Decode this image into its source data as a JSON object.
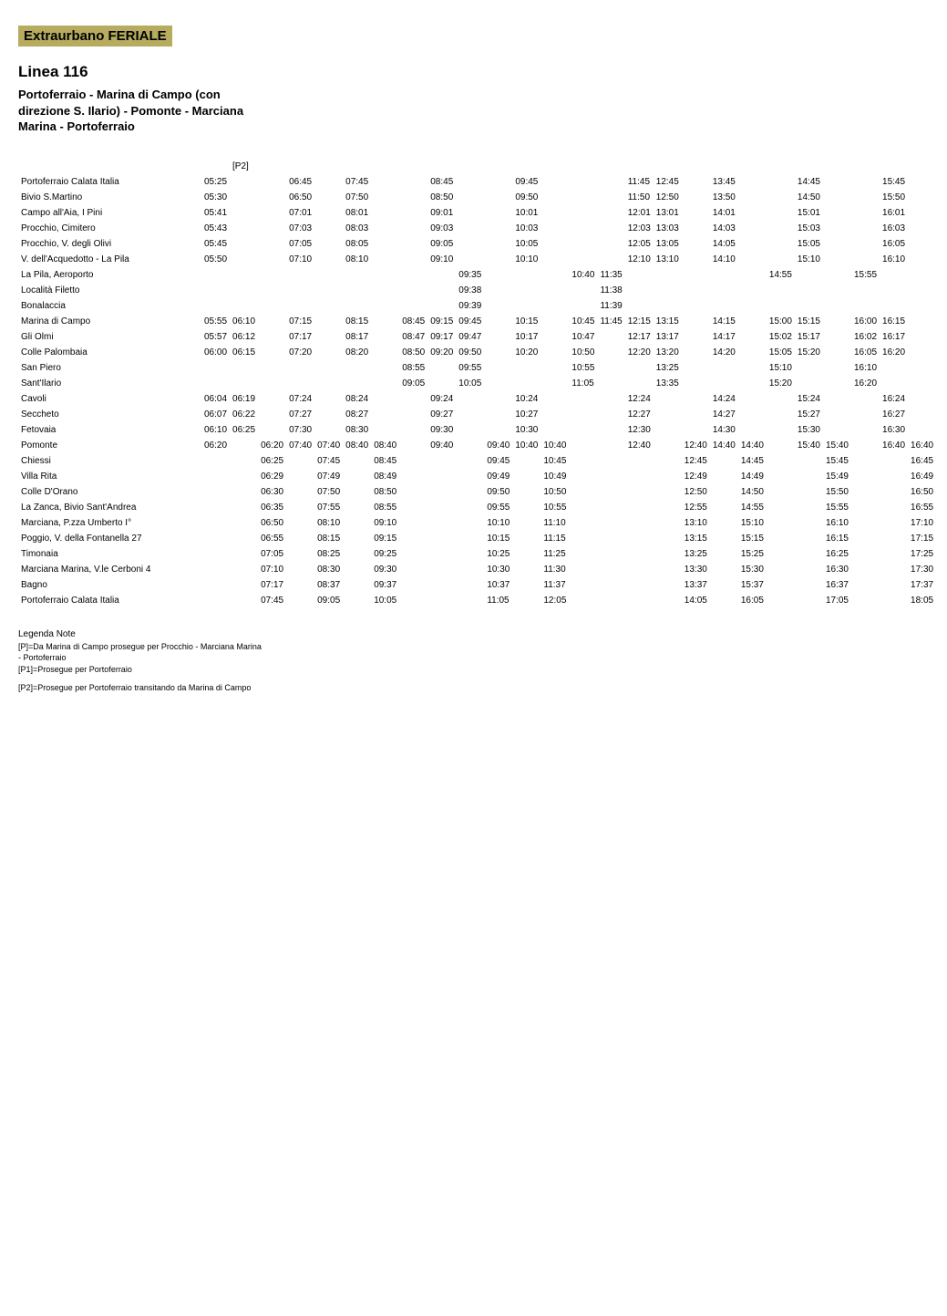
{
  "badge": "Extraurbano FERIALE",
  "linea": "Linea 116",
  "subtitle_lines": [
    "Portoferraio - Marina di  Campo (con",
    "direzione S. Ilario) - Pomonte - Marciana",
    "Marina - Portoferraio"
  ],
  "header_note_col": 2,
  "header_note": "[P2]",
  "num_time_cols": 28,
  "stops": [
    {
      "name": "Portoferraio Calata Italia",
      "times": {
        "1": "05:25",
        "4": "06:45",
        "6": "07:45",
        "9": "08:45",
        "12": "09:45",
        "16": "11:45",
        "17": "12:45",
        "19": "13:45",
        "22": "14:45",
        "25": "15:45"
      }
    },
    {
      "name": "Bivio S.Martino",
      "times": {
        "1": "05:30",
        "4": "06:50",
        "6": "07:50",
        "9": "08:50",
        "12": "09:50",
        "16": "11:50",
        "17": "12:50",
        "19": "13:50",
        "22": "14:50",
        "25": "15:50"
      }
    },
    {
      "name": "Campo all'Aia,  I Pini",
      "times": {
        "1": "05:41",
        "4": "07:01",
        "6": "08:01",
        "9": "09:01",
        "12": "10:01",
        "16": "12:01",
        "17": "13:01",
        "19": "14:01",
        "22": "15:01",
        "25": "16:01"
      }
    },
    {
      "name": "Procchio, Cimitero",
      "times": {
        "1": "05:43",
        "4": "07:03",
        "6": "08:03",
        "9": "09:03",
        "12": "10:03",
        "16": "12:03",
        "17": "13:03",
        "19": "14:03",
        "22": "15:03",
        "25": "16:03"
      }
    },
    {
      "name": "Procchio, V. degli Olivi",
      "times": {
        "1": "05:45",
        "4": "07:05",
        "6": "08:05",
        "9": "09:05",
        "12": "10:05",
        "16": "12:05",
        "17": "13:05",
        "19": "14:05",
        "22": "15:05",
        "25": "16:05"
      }
    },
    {
      "name": "V. dell'Acquedotto - La Pila",
      "times": {
        "1": "05:50",
        "4": "07:10",
        "6": "08:10",
        "9": "09:10",
        "12": "10:10",
        "16": "12:10",
        "17": "13:10",
        "19": "14:10",
        "22": "15:10",
        "25": "16:10"
      }
    },
    {
      "name": "La Pila, Aeroporto",
      "times": {
        "10": "09:35",
        "14": "10:40",
        "15": "11:35",
        "21": "14:55",
        "24": "15:55"
      }
    },
    {
      "name": "Località Filetto",
      "times": {
        "10": "09:38",
        "15": "11:38"
      }
    },
    {
      "name": "Bonalaccia",
      "times": {
        "10": "09:39",
        "15": "11:39"
      }
    },
    {
      "name": "Marina di Campo",
      "times": {
        "1": "05:55",
        "2": "06:10",
        "4": "07:15",
        "6": "08:15",
        "8": "08:45",
        "9": "09:15",
        "10": "09:45",
        "12": "10:15",
        "14": "10:45",
        "15": "11:45",
        "16": "12:15",
        "17": "13:15",
        "19": "14:15",
        "21": "15:00",
        "22": "15:15",
        "24": "16:00",
        "25": "16:15"
      }
    },
    {
      "name": "Gli Olmi",
      "times": {
        "1": "05:57",
        "2": "06:12",
        "4": "07:17",
        "6": "08:17",
        "8": "08:47",
        "9": "09:17",
        "10": "09:47",
        "12": "10:17",
        "14": "10:47",
        "16": "12:17",
        "17": "13:17",
        "19": "14:17",
        "21": "15:02",
        "22": "15:17",
        "24": "16:02",
        "25": "16:17"
      }
    },
    {
      "name": "Colle Palombaia",
      "times": {
        "1": "06:00",
        "2": "06:15",
        "4": "07:20",
        "6": "08:20",
        "8": "08:50",
        "9": "09:20",
        "10": "09:50",
        "12": "10:20",
        "14": "10:50",
        "16": "12:20",
        "17": "13:20",
        "19": "14:20",
        "21": "15:05",
        "22": "15:20",
        "24": "16:05",
        "25": "16:20"
      }
    },
    {
      "name": "San Piero",
      "times": {
        "8": "08:55",
        "10": "09:55",
        "14": "10:55",
        "17": "13:25",
        "21": "15:10",
        "24": "16:10"
      }
    },
    {
      "name": "Sant'Ilario",
      "times": {
        "8": "09:05",
        "10": "10:05",
        "14": "11:05",
        "17": "13:35",
        "21": "15:20",
        "24": "16:20"
      }
    },
    {
      "name": "Cavoli",
      "times": {
        "1": "06:04",
        "2": "06:19",
        "4": "07:24",
        "6": "08:24",
        "9": "09:24",
        "12": "10:24",
        "16": "12:24",
        "19": "14:24",
        "22": "15:24",
        "25": "16:24"
      }
    },
    {
      "name": "Seccheto",
      "times": {
        "1": "06:07",
        "2": "06:22",
        "4": "07:27",
        "6": "08:27",
        "9": "09:27",
        "12": "10:27",
        "16": "12:27",
        "19": "14:27",
        "22": "15:27",
        "25": "16:27"
      }
    },
    {
      "name": "Fetovaia",
      "times": {
        "1": "06:10",
        "2": "06:25",
        "4": "07:30",
        "6": "08:30",
        "9": "09:30",
        "12": "10:30",
        "16": "12:30",
        "19": "14:30",
        "22": "15:30",
        "25": "16:30"
      }
    },
    {
      "name": "Pomonte",
      "times": {
        "1": "06:20",
        "3": "06:20",
        "4": "07:40",
        "5": "07:40",
        "6": "08:40",
        "7": "08:40",
        "9": "09:40",
        "11": "09:40",
        "12": "10:40",
        "13": "10:40",
        "16": "12:40",
        "18": "12:40",
        "19": "14:40",
        "20": "14:40",
        "22": "15:40",
        "23": "15:40",
        "25": "16:40",
        "26": "16:40"
      }
    },
    {
      "name": "Chiessi",
      "times": {
        "3": "06:25",
        "5": "07:45",
        "7": "08:45",
        "11": "09:45",
        "13": "10:45",
        "18": "12:45",
        "20": "14:45",
        "23": "15:45",
        "26": "16:45"
      }
    },
    {
      "name": "Villa Rita",
      "times": {
        "3": "06:29",
        "5": "07:49",
        "7": "08:49",
        "11": "09:49",
        "13": "10:49",
        "18": "12:49",
        "20": "14:49",
        "23": "15:49",
        "26": "16:49"
      }
    },
    {
      "name": "Colle D'Orano",
      "times": {
        "3": "06:30",
        "5": "07:50",
        "7": "08:50",
        "11": "09:50",
        "13": "10:50",
        "18": "12:50",
        "20": "14:50",
        "23": "15:50",
        "26": "16:50"
      }
    },
    {
      "name": "La Zanca,  Bivio Sant'Andrea",
      "times": {
        "3": "06:35",
        "5": "07:55",
        "7": "08:55",
        "11": "09:55",
        "13": "10:55",
        "18": "12:55",
        "20": "14:55",
        "23": "15:55",
        "26": "16:55"
      }
    },
    {
      "name": "Marciana, P.zza Umberto I°",
      "times": {
        "3": "06:50",
        "5": "08:10",
        "7": "09:10",
        "11": "10:10",
        "13": "11:10",
        "18": "13:10",
        "20": "15:10",
        "23": "16:10",
        "26": "17:10"
      }
    },
    {
      "name": "Poggio, V. della Fontanella 27",
      "times": {
        "3": "06:55",
        "5": "08:15",
        "7": "09:15",
        "11": "10:15",
        "13": "11:15",
        "18": "13:15",
        "20": "15:15",
        "23": "16:15",
        "26": "17:15"
      }
    },
    {
      "name": "Timonaia",
      "times": {
        "3": "07:05",
        "5": "08:25",
        "7": "09:25",
        "11": "10:25",
        "13": "11:25",
        "18": "13:25",
        "20": "15:25",
        "23": "16:25",
        "26": "17:25"
      }
    },
    {
      "name": "Marciana Marina, V.le Cerboni 4",
      "times": {
        "3": "07:10",
        "5": "08:30",
        "7": "09:30",
        "11": "10:30",
        "13": "11:30",
        "18": "13:30",
        "20": "15:30",
        "23": "16:30",
        "26": "17:30"
      }
    },
    {
      "name": "Bagno",
      "times": {
        "3": "07:17",
        "5": "08:37",
        "7": "09:37",
        "11": "10:37",
        "13": "11:37",
        "18": "13:37",
        "20": "15:37",
        "23": "16:37",
        "26": "17:37"
      }
    },
    {
      "name": "Portoferraio Calata Italia",
      "times": {
        "3": "07:45",
        "5": "09:05",
        "7": "10:05",
        "11": "11:05",
        "13": "12:05",
        "18": "14:05",
        "20": "16:05",
        "23": "17:05",
        "26": "18:05"
      }
    }
  ],
  "legend_title": "Legenda Note",
  "legend_lines": [
    "[P]=Da Marina di Campo prosegue per Procchio - Marciana Marina",
    " - Portoferraio",
    "[P1]=Prosegue per Portoferraio",
    "",
    "[P2]=Prosegue per Portoferraio transitando da Marina di Campo"
  ]
}
